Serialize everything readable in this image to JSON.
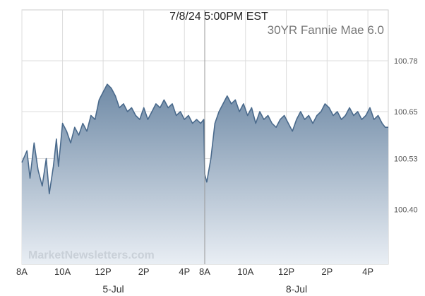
{
  "chart_data": {
    "type": "area",
    "title": "7/8/24 5:00PM EST",
    "subtitle": "30YR Fannie Mae 6.0",
    "watermark": "MarketNewsletters.com",
    "ylim": [
      100.26,
      100.91
    ],
    "y_ticks": [
      100.4,
      100.53,
      100.65,
      100.78
    ],
    "y_tick_labels": [
      "100.40",
      "100.53",
      "100.65",
      "100.78"
    ],
    "x_ticks": [
      {
        "session": 0,
        "hour": 8,
        "label": "8A"
      },
      {
        "session": 0,
        "hour": 10,
        "label": "10A"
      },
      {
        "session": 0,
        "hour": 12,
        "label": "12P"
      },
      {
        "session": 0,
        "hour": 14,
        "label": "2P"
      },
      {
        "session": 0,
        "hour": 16,
        "label": "4P"
      },
      {
        "session": 1,
        "hour": 8,
        "label": "8A"
      },
      {
        "session": 1,
        "hour": 10,
        "label": "10A"
      },
      {
        "session": 1,
        "hour": 12,
        "label": "12P"
      },
      {
        "session": 1,
        "hour": 14,
        "label": "2P"
      },
      {
        "session": 1,
        "hour": 16,
        "label": "4P"
      }
    ],
    "day_labels": [
      {
        "session": 0,
        "label": "5-Jul"
      },
      {
        "session": 1,
        "label": "8-Jul"
      }
    ],
    "grid": true,
    "legend": "none",
    "colors": {
      "line": "#4a6a8c",
      "fill_top": "#6f8aa6",
      "fill_bottom": "#e9eef4",
      "grid": "#dcdcdc",
      "session_divider": "#999999",
      "frame": "#cccccc"
    },
    "series": [
      {
        "points": [
          [
            0,
            8.0,
            100.52
          ],
          [
            0,
            8.25,
            100.55
          ],
          [
            0,
            8.4,
            100.48
          ],
          [
            0,
            8.6,
            100.57
          ],
          [
            0,
            8.8,
            100.5
          ],
          [
            0,
            9.0,
            100.46
          ],
          [
            0,
            9.2,
            100.53
          ],
          [
            0,
            9.35,
            100.44
          ],
          [
            0,
            9.55,
            100.51
          ],
          [
            0,
            9.7,
            100.58
          ],
          [
            0,
            9.8,
            100.51
          ],
          [
            0,
            10.0,
            100.62
          ],
          [
            0,
            10.2,
            100.6
          ],
          [
            0,
            10.4,
            100.57
          ],
          [
            0,
            10.6,
            100.61
          ],
          [
            0,
            10.8,
            100.59
          ],
          [
            0,
            11.0,
            100.62
          ],
          [
            0,
            11.2,
            100.6
          ],
          [
            0,
            11.4,
            100.64
          ],
          [
            0,
            11.6,
            100.63
          ],
          [
            0,
            11.8,
            100.68
          ],
          [
            0,
            12.0,
            100.7
          ],
          [
            0,
            12.2,
            100.72
          ],
          [
            0,
            12.4,
            100.71
          ],
          [
            0,
            12.6,
            100.69
          ],
          [
            0,
            12.8,
            100.66
          ],
          [
            0,
            13.0,
            100.67
          ],
          [
            0,
            13.2,
            100.65
          ],
          [
            0,
            13.4,
            100.66
          ],
          [
            0,
            13.6,
            100.64
          ],
          [
            0,
            13.8,
            100.63
          ],
          [
            0,
            14.0,
            100.66
          ],
          [
            0,
            14.2,
            100.63
          ],
          [
            0,
            14.4,
            100.65
          ],
          [
            0,
            14.6,
            100.67
          ],
          [
            0,
            14.8,
            100.66
          ],
          [
            0,
            15.0,
            100.68
          ],
          [
            0,
            15.2,
            100.66
          ],
          [
            0,
            15.4,
            100.67
          ],
          [
            0,
            15.6,
            100.64
          ],
          [
            0,
            15.8,
            100.65
          ],
          [
            0,
            16.0,
            100.63
          ],
          [
            0,
            16.2,
            100.64
          ],
          [
            0,
            16.4,
            100.62
          ],
          [
            0,
            16.6,
            100.63
          ],
          [
            0,
            16.8,
            100.62
          ],
          [
            0,
            16.95,
            100.63
          ],
          [
            1,
            8.0,
            100.49
          ],
          [
            1,
            8.1,
            100.47
          ],
          [
            1,
            8.3,
            100.53
          ],
          [
            1,
            8.5,
            100.62
          ],
          [
            1,
            8.7,
            100.65
          ],
          [
            1,
            8.9,
            100.67
          ],
          [
            1,
            9.1,
            100.69
          ],
          [
            1,
            9.3,
            100.67
          ],
          [
            1,
            9.5,
            100.68
          ],
          [
            1,
            9.7,
            100.65
          ],
          [
            1,
            9.9,
            100.67
          ],
          [
            1,
            10.1,
            100.64
          ],
          [
            1,
            10.3,
            100.66
          ],
          [
            1,
            10.5,
            100.62
          ],
          [
            1,
            10.7,
            100.65
          ],
          [
            1,
            10.9,
            100.63
          ],
          [
            1,
            11.1,
            100.64
          ],
          [
            1,
            11.3,
            100.62
          ],
          [
            1,
            11.5,
            100.61
          ],
          [
            1,
            11.7,
            100.63
          ],
          [
            1,
            11.9,
            100.64
          ],
          [
            1,
            12.1,
            100.62
          ],
          [
            1,
            12.3,
            100.6
          ],
          [
            1,
            12.5,
            100.63
          ],
          [
            1,
            12.7,
            100.65
          ],
          [
            1,
            12.9,
            100.63
          ],
          [
            1,
            13.1,
            100.64
          ],
          [
            1,
            13.3,
            100.62
          ],
          [
            1,
            13.5,
            100.64
          ],
          [
            1,
            13.7,
            100.65
          ],
          [
            1,
            13.9,
            100.67
          ],
          [
            1,
            14.1,
            100.66
          ],
          [
            1,
            14.3,
            100.64
          ],
          [
            1,
            14.5,
            100.65
          ],
          [
            1,
            14.7,
            100.63
          ],
          [
            1,
            14.9,
            100.64
          ],
          [
            1,
            15.1,
            100.66
          ],
          [
            1,
            15.3,
            100.64
          ],
          [
            1,
            15.5,
            100.65
          ],
          [
            1,
            15.7,
            100.63
          ],
          [
            1,
            15.9,
            100.64
          ],
          [
            1,
            16.1,
            100.66
          ],
          [
            1,
            16.3,
            100.63
          ],
          [
            1,
            16.5,
            100.64
          ],
          [
            1,
            16.7,
            100.62
          ],
          [
            1,
            16.85,
            100.61
          ],
          [
            1,
            17.0,
            100.61
          ]
        ]
      }
    ]
  }
}
